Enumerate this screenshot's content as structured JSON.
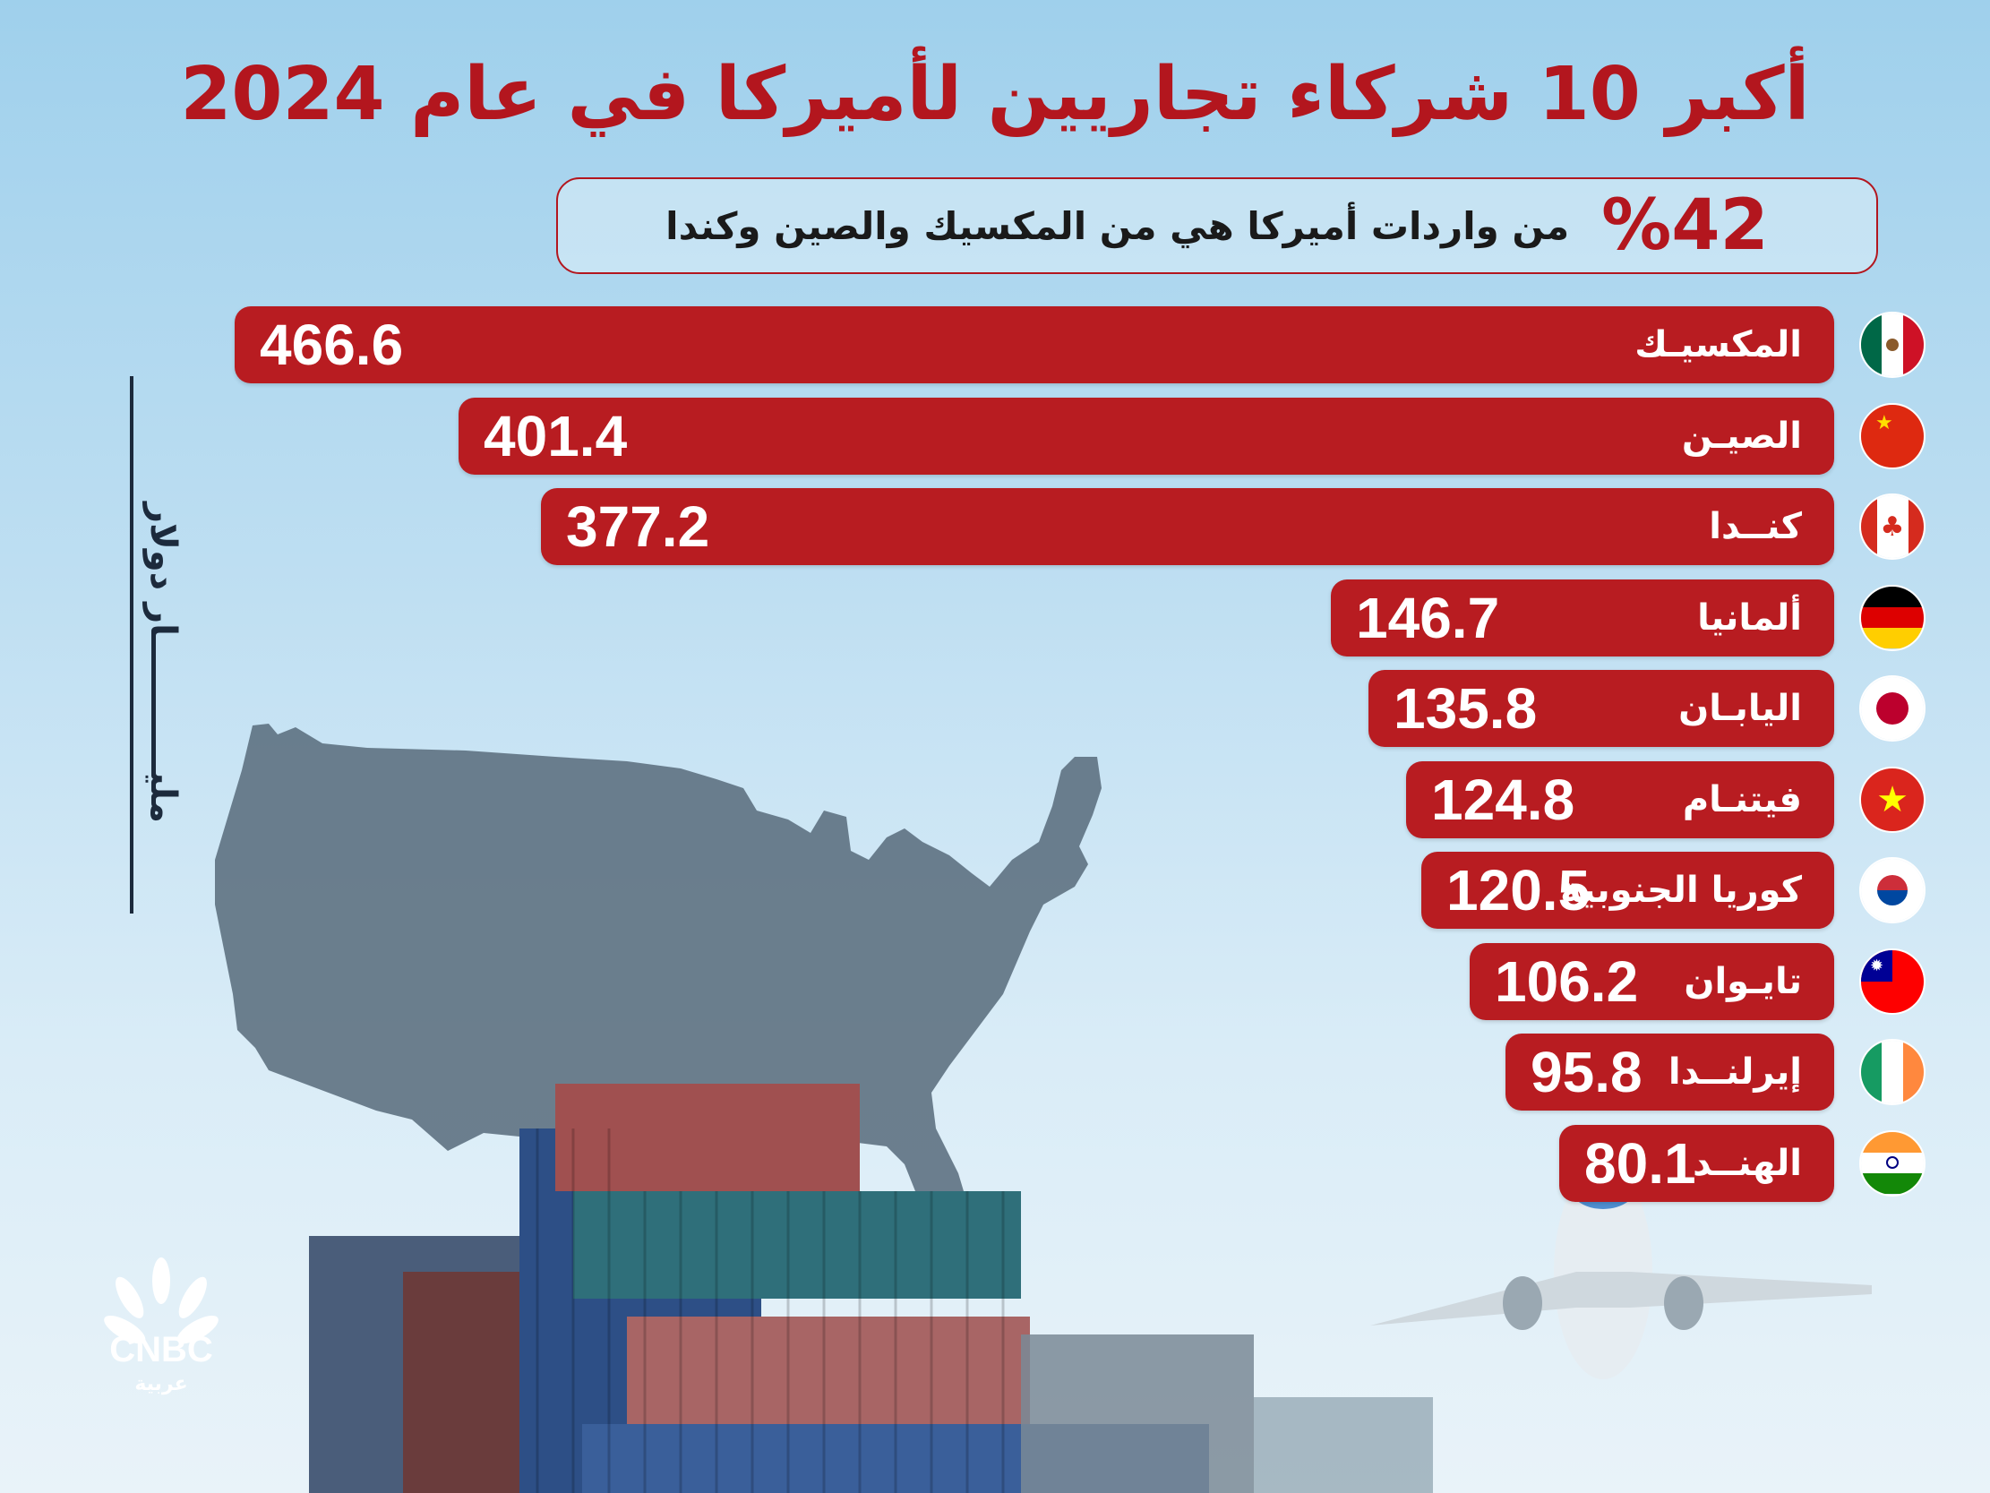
{
  "title": "أكبر 10 شركاء تجاريين لأميركا في عام 2024",
  "subtitle": {
    "percent": "%42",
    "text": "من واردات أميركا هي من المكسيك والصين وكندا"
  },
  "unit_label": "مليـــــــــــار دولار",
  "logo": {
    "brand": "CNBC",
    "sub": "عربية"
  },
  "colors": {
    "accent": "#b81c21",
    "title": "#b3161e",
    "unit": "#1c2a3c"
  },
  "chart_data": {
    "type": "bar",
    "orientation": "horizontal",
    "categories": [
      "المكسيـك",
      "الصيـن",
      "كنــدا",
      "ألمانيا",
      "اليابـان",
      "فيتنـام",
      "كوريا الجنوبية",
      "تايـوان",
      "إيرلنــدا",
      "الهنــد"
    ],
    "values": [
      466.6,
      401.4,
      377.2,
      146.7,
      135.8,
      124.8,
      120.5,
      106.2,
      95.8,
      80.1
    ],
    "value_labels": [
      "466.6",
      "401.4",
      "377.2",
      "146.7",
      "135.8",
      "124.8",
      "120.5",
      "106.2",
      "95.8",
      "80.1"
    ],
    "flags": [
      "mexico-flag-icon",
      "china-flag-icon",
      "canada-flag-icon",
      "germany-flag-icon",
      "japan-flag-icon",
      "vietnam-flag-icon",
      "south-korea-flag-icon",
      "taiwan-flag-icon",
      "ireland-flag-icon",
      "india-flag-icon"
    ],
    "unit": "مليار دولار",
    "grid": false,
    "legend": "none"
  }
}
